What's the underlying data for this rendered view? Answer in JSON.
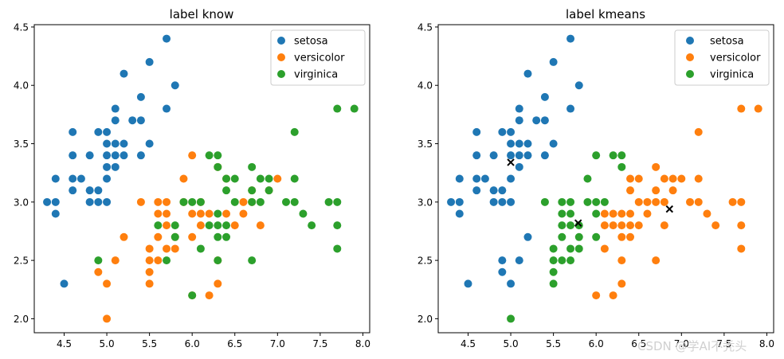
{
  "colors": {
    "setosa": "#1f77b4",
    "versicolor": "#ff7f0e",
    "virginica": "#2ca02c",
    "center": "#000000"
  },
  "watermark": "CSDN @学AI不秃头",
  "chart_data": [
    {
      "type": "scatter",
      "title": "label know",
      "xlim": [
        4.15,
        8.08
      ],
      "ylim": [
        1.88,
        4.52
      ],
      "xticks": [
        4.5,
        5.0,
        5.5,
        6.0,
        6.5,
        7.0,
        7.5,
        8.0
      ],
      "xtick_labels": [
        "4.5",
        "5.0",
        "5.5",
        "6.0",
        "6.5",
        "7.0",
        "7.5",
        "8.0"
      ],
      "yticks": [
        2.0,
        2.5,
        3.0,
        3.5,
        4.0,
        4.5
      ],
      "ytick_labels": [
        "2.0",
        "2.5",
        "3.0",
        "3.5",
        "4.0",
        "4.5"
      ],
      "legend_position": "top-right",
      "series": [
        {
          "name": "setosa",
          "color": "#1f77b4",
          "points": [
            [
              4.3,
              3.0
            ],
            [
              4.4,
              3.0
            ],
            [
              4.4,
              2.9
            ],
            [
              4.4,
              3.2
            ],
            [
              4.5,
              2.3
            ],
            [
              4.6,
              3.1
            ],
            [
              4.6,
              3.2
            ],
            [
              4.6,
              3.4
            ],
            [
              4.6,
              3.6
            ],
            [
              4.7,
              3.2
            ],
            [
              4.8,
              3.0
            ],
            [
              4.8,
              3.1
            ],
            [
              4.8,
              3.4
            ],
            [
              4.9,
              3.0
            ],
            [
              4.9,
              3.1
            ],
            [
              4.9,
              3.6
            ],
            [
              5.0,
              3.0
            ],
            [
              5.0,
              3.2
            ],
            [
              5.0,
              3.3
            ],
            [
              5.0,
              3.4
            ],
            [
              5.0,
              3.5
            ],
            [
              5.0,
              3.6
            ],
            [
              5.1,
              3.3
            ],
            [
              5.1,
              3.4
            ],
            [
              5.1,
              3.5
            ],
            [
              5.1,
              3.7
            ],
            [
              5.1,
              3.8
            ],
            [
              5.2,
              3.4
            ],
            [
              5.2,
              3.5
            ],
            [
              5.2,
              4.1
            ],
            [
              5.3,
              3.7
            ],
            [
              5.4,
              3.4
            ],
            [
              5.4,
              3.7
            ],
            [
              5.4,
              3.9
            ],
            [
              5.5,
              3.5
            ],
            [
              5.5,
              4.2
            ],
            [
              5.7,
              3.8
            ],
            [
              5.7,
              4.4
            ],
            [
              5.8,
              4.0
            ]
          ]
        },
        {
          "name": "versicolor",
          "color": "#ff7f0e",
          "points": [
            [
              4.9,
              2.4
            ],
            [
              5.0,
              2.0
            ],
            [
              5.0,
              2.3
            ],
            [
              5.1,
              2.5
            ],
            [
              5.2,
              2.7
            ],
            [
              5.4,
              3.0
            ],
            [
              5.5,
              2.3
            ],
            [
              5.5,
              2.4
            ],
            [
              5.5,
              2.5
            ],
            [
              5.5,
              2.6
            ],
            [
              5.6,
              2.5
            ],
            [
              5.6,
              2.7
            ],
            [
              5.6,
              2.9
            ],
            [
              5.6,
              3.0
            ],
            [
              5.7,
              2.6
            ],
            [
              5.7,
              2.8
            ],
            [
              5.7,
              2.9
            ],
            [
              5.7,
              3.0
            ],
            [
              5.8,
              2.6
            ],
            [
              5.8,
              2.7
            ],
            [
              5.9,
              3.0
            ],
            [
              5.9,
              3.2
            ],
            [
              6.0,
              2.2
            ],
            [
              6.0,
              2.7
            ],
            [
              6.0,
              2.9
            ],
            [
              6.0,
              3.4
            ],
            [
              6.1,
              2.8
            ],
            [
              6.1,
              2.9
            ],
            [
              6.1,
              3.0
            ],
            [
              6.2,
              2.2
            ],
            [
              6.2,
              2.9
            ],
            [
              6.3,
              2.3
            ],
            [
              6.3,
              2.5
            ],
            [
              6.3,
              3.3
            ],
            [
              6.4,
              2.9
            ],
            [
              6.4,
              3.2
            ],
            [
              6.5,
              2.8
            ],
            [
              6.6,
              2.9
            ],
            [
              6.6,
              3.0
            ],
            [
              6.7,
              3.0
            ],
            [
              6.7,
              3.1
            ],
            [
              6.8,
              2.8
            ],
            [
              6.9,
              3.1
            ],
            [
              7.0,
              3.2
            ]
          ]
        },
        {
          "name": "virginica",
          "color": "#2ca02c",
          "points": [
            [
              4.9,
              2.5
            ],
            [
              5.6,
              2.8
            ],
            [
              5.7,
              2.5
            ],
            [
              5.8,
              2.7
            ],
            [
              5.8,
              2.8
            ],
            [
              5.9,
              3.0
            ],
            [
              6.0,
              2.2
            ],
            [
              6.0,
              3.0
            ],
            [
              6.1,
              2.6
            ],
            [
              6.1,
              3.0
            ],
            [
              6.2,
              2.8
            ],
            [
              6.2,
              3.4
            ],
            [
              6.3,
              2.5
            ],
            [
              6.3,
              2.7
            ],
            [
              6.3,
              2.8
            ],
            [
              6.3,
              2.9
            ],
            [
              6.3,
              3.3
            ],
            [
              6.3,
              3.4
            ],
            [
              6.4,
              2.7
            ],
            [
              6.4,
              2.8
            ],
            [
              6.4,
              3.1
            ],
            [
              6.4,
              3.2
            ],
            [
              6.5,
              3.0
            ],
            [
              6.5,
              3.2
            ],
            [
              6.7,
              2.5
            ],
            [
              6.7,
              3.0
            ],
            [
              6.7,
              3.1
            ],
            [
              6.7,
              3.3
            ],
            [
              6.8,
              3.0
            ],
            [
              6.8,
              3.2
            ],
            [
              6.9,
              3.1
            ],
            [
              6.9,
              3.2
            ],
            [
              7.1,
              3.0
            ],
            [
              7.2,
              3.0
            ],
            [
              7.2,
              3.2
            ],
            [
              7.2,
              3.6
            ],
            [
              7.3,
              2.9
            ],
            [
              7.4,
              2.8
            ],
            [
              7.6,
              3.0
            ],
            [
              7.7,
              2.6
            ],
            [
              7.7,
              2.8
            ],
            [
              7.7,
              3.0
            ],
            [
              7.7,
              3.8
            ],
            [
              7.9,
              3.8
            ]
          ]
        }
      ]
    },
    {
      "type": "scatter",
      "title": "label kmeans",
      "xlim": [
        4.15,
        8.08
      ],
      "ylim": [
        1.88,
        4.52
      ],
      "xticks": [
        4.5,
        5.0,
        5.5,
        6.0,
        6.5,
        7.0,
        7.5,
        8.0
      ],
      "xtick_labels": [
        "4.5",
        "5.0",
        "5.5",
        "6.0",
        "6.5",
        "7.0",
        "7.5",
        "8.0"
      ],
      "yticks": [
        2.0,
        2.5,
        3.0,
        3.5,
        4.0,
        4.5
      ],
      "ytick_labels": [
        "2.0",
        "2.5",
        "3.0",
        "3.5",
        "4.0",
        "4.5"
      ],
      "legend_position": "top-right",
      "series": [
        {
          "name": "setosa",
          "color": "#1f77b4",
          "points": [
            [
              4.3,
              3.0
            ],
            [
              4.4,
              3.0
            ],
            [
              4.4,
              2.9
            ],
            [
              4.4,
              3.2
            ],
            [
              4.5,
              2.3
            ],
            [
              4.6,
              3.1
            ],
            [
              4.6,
              3.2
            ],
            [
              4.6,
              3.4
            ],
            [
              4.6,
              3.6
            ],
            [
              4.7,
              3.2
            ],
            [
              4.8,
              3.0
            ],
            [
              4.8,
              3.1
            ],
            [
              4.8,
              3.4
            ],
            [
              4.9,
              2.4
            ],
            [
              4.9,
              2.5
            ],
            [
              4.9,
              3.0
            ],
            [
              4.9,
              3.1
            ],
            [
              4.9,
              3.6
            ],
            [
              5.0,
              2.3
            ],
            [
              5.0,
              3.0
            ],
            [
              5.0,
              3.2
            ],
            [
              5.0,
              3.4
            ],
            [
              5.0,
              3.5
            ],
            [
              5.0,
              3.6
            ],
            [
              5.1,
              2.5
            ],
            [
              5.1,
              3.3
            ],
            [
              5.1,
              3.4
            ],
            [
              5.1,
              3.5
            ],
            [
              5.1,
              3.7
            ],
            [
              5.1,
              3.8
            ],
            [
              5.2,
              2.7
            ],
            [
              5.2,
              3.4
            ],
            [
              5.2,
              3.5
            ],
            [
              5.2,
              4.1
            ],
            [
              5.3,
              3.7
            ],
            [
              5.4,
              3.4
            ],
            [
              5.4,
              3.7
            ],
            [
              5.4,
              3.9
            ],
            [
              5.5,
              3.5
            ],
            [
              5.5,
              4.2
            ],
            [
              5.7,
              3.8
            ],
            [
              5.7,
              4.4
            ],
            [
              5.8,
              4.0
            ]
          ]
        },
        {
          "name": "versicolor",
          "color": "#ff7f0e",
          "points": [
            [
              6.0,
              2.2
            ],
            [
              6.1,
              2.6
            ],
            [
              6.1,
              2.8
            ],
            [
              6.1,
              2.9
            ],
            [
              6.2,
              2.2
            ],
            [
              6.2,
              2.8
            ],
            [
              6.2,
              2.9
            ],
            [
              6.3,
              2.3
            ],
            [
              6.3,
              2.5
            ],
            [
              6.3,
              2.7
            ],
            [
              6.3,
              2.8
            ],
            [
              6.3,
              2.9
            ],
            [
              6.4,
              2.7
            ],
            [
              6.4,
              2.8
            ],
            [
              6.4,
              2.9
            ],
            [
              6.4,
              3.1
            ],
            [
              6.4,
              3.2
            ],
            [
              6.5,
              2.8
            ],
            [
              6.5,
              3.0
            ],
            [
              6.5,
              3.2
            ],
            [
              6.6,
              2.9
            ],
            [
              6.6,
              3.0
            ],
            [
              6.7,
              2.5
            ],
            [
              6.7,
              3.0
            ],
            [
              6.7,
              3.1
            ],
            [
              6.7,
              3.3
            ],
            [
              6.8,
              2.8
            ],
            [
              6.8,
              3.0
            ],
            [
              6.8,
              3.2
            ],
            [
              6.9,
              3.1
            ],
            [
              6.9,
              3.2
            ],
            [
              7.0,
              3.2
            ],
            [
              7.1,
              3.0
            ],
            [
              7.2,
              3.0
            ],
            [
              7.2,
              3.2
            ],
            [
              7.2,
              3.6
            ],
            [
              7.3,
              2.9
            ],
            [
              7.4,
              2.8
            ],
            [
              7.6,
              3.0
            ],
            [
              7.7,
              2.6
            ],
            [
              7.7,
              2.8
            ],
            [
              7.7,
              3.0
            ],
            [
              7.7,
              3.8
            ],
            [
              7.9,
              3.8
            ]
          ]
        },
        {
          "name": "virginica",
          "color": "#2ca02c",
          "points": [
            [
              5.0,
              2.0
            ],
            [
              5.4,
              3.0
            ],
            [
              5.5,
              2.3
            ],
            [
              5.5,
              2.4
            ],
            [
              5.5,
              2.5
            ],
            [
              5.5,
              2.6
            ],
            [
              5.6,
              2.5
            ],
            [
              5.6,
              2.7
            ],
            [
              5.6,
              2.8
            ],
            [
              5.6,
              2.9
            ],
            [
              5.6,
              3.0
            ],
            [
              5.7,
              2.5
            ],
            [
              5.7,
              2.6
            ],
            [
              5.7,
              2.8
            ],
            [
              5.7,
              2.9
            ],
            [
              5.7,
              3.0
            ],
            [
              5.8,
              2.6
            ],
            [
              5.8,
              2.7
            ],
            [
              5.8,
              2.8
            ],
            [
              5.9,
              3.0
            ],
            [
              5.9,
              3.2
            ],
            [
              6.0,
              2.7
            ],
            [
              6.0,
              2.9
            ],
            [
              6.0,
              3.0
            ],
            [
              6.0,
              3.4
            ],
            [
              6.1,
              3.0
            ],
            [
              6.2,
              3.4
            ],
            [
              6.3,
              3.3
            ],
            [
              6.3,
              3.4
            ]
          ]
        }
      ],
      "centers": [
        [
          5.0,
          3.34
        ],
        [
          5.79,
          2.82
        ],
        [
          6.86,
          2.94
        ]
      ]
    }
  ]
}
